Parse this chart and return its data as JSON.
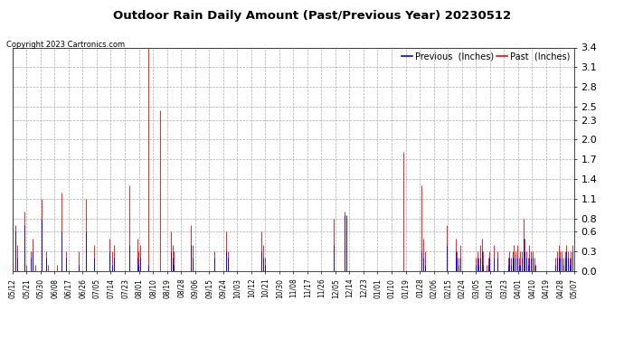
{
  "title": "Outdoor Rain Daily Amount (Past/Previous Year) 20230512",
  "copyright": "Copyright 2023 Cartronics.com",
  "legend_previous": "Previous  (Inches)",
  "legend_past": "Past  (Inches)",
  "color_previous": "#0000FF",
  "color_past": "#FF0000",
  "color_bg": "#FFFFFF",
  "color_grid": "#AAAAAA",
  "ylim": [
    0.0,
    3.4
  ],
  "yticks": [
    0.0,
    0.3,
    0.6,
    0.8,
    1.1,
    1.4,
    1.7,
    2.0,
    2.3,
    2.5,
    2.8,
    3.1,
    3.4
  ],
  "x_labels": [
    "05/12",
    "05/21",
    "05/30",
    "06/08",
    "06/17",
    "06/26",
    "07/05",
    "07/14",
    "07/23",
    "08/01",
    "08/10",
    "08/19",
    "08/28",
    "09/06",
    "09/15",
    "09/24",
    "10/03",
    "10/12",
    "10/21",
    "10/30",
    "11/08",
    "11/17",
    "11/26",
    "12/05",
    "12/14",
    "12/23",
    "01/01",
    "01/10",
    "01/19",
    "01/28",
    "02/06",
    "02/15",
    "02/24",
    "03/05",
    "03/14",
    "03/23",
    "04/01",
    "04/10",
    "04/19",
    "04/28",
    "05/07"
  ],
  "past_rain": [
    0.1,
    0.0,
    0.7,
    0.4,
    0.0,
    0.0,
    0.0,
    0.0,
    0.9,
    0.1,
    0.0,
    0.0,
    0.3,
    0.5,
    0.0,
    0.1,
    0.0,
    0.0,
    0.0,
    1.1,
    0.0,
    0.0,
    0.3,
    0.1,
    0.0,
    0.0,
    0.0,
    0.0,
    0.0,
    0.1,
    0.0,
    0.0,
    1.2,
    0.0,
    0.0,
    0.3,
    0.0,
    0.0,
    0.0,
    0.0,
    0.0,
    0.0,
    0.0,
    0.3,
    0.0,
    0.0,
    0.0,
    0.0,
    1.1,
    0.0,
    0.0,
    0.0,
    0.0,
    0.4,
    0.0,
    0.0,
    0.0,
    0.0,
    0.0,
    0.0,
    0.0,
    0.0,
    0.0,
    0.5,
    0.0,
    0.3,
    0.4,
    0.0,
    0.0,
    0.0,
    0.0,
    0.0,
    0.0,
    0.0,
    0.0,
    0.0,
    1.3,
    0.0,
    0.0,
    0.0,
    0.0,
    0.5,
    0.3,
    0.4,
    0.0,
    0.0,
    0.0,
    0.0,
    3.4,
    0.0,
    0.0,
    0.0,
    0.0,
    0.0,
    0.0,
    0.0,
    2.45,
    0.0,
    0.0,
    0.0,
    0.0,
    0.0,
    0.0,
    0.6,
    0.4,
    0.3,
    0.0,
    0.0,
    0.0,
    0.0,
    0.0,
    0.0,
    0.0,
    0.0,
    0.0,
    0.0,
    0.7,
    0.4,
    0.0,
    0.0,
    0.0,
    0.0,
    0.0,
    0.0,
    0.0,
    0.0,
    0.0,
    0.0,
    0.0,
    0.0,
    0.0,
    0.3,
    0.0,
    0.0,
    0.0,
    0.0,
    0.0,
    0.0,
    0.0,
    0.6,
    0.3,
    0.0,
    0.0,
    0.0,
    0.0,
    0.0,
    0.0,
    0.0,
    0.0,
    0.0,
    0.0,
    0.0,
    0.0,
    0.0,
    0.0,
    0.0,
    0.0,
    0.0,
    0.0,
    0.0,
    0.0,
    0.0,
    0.6,
    0.4,
    0.2,
    0.0,
    0.0,
    0.0,
    0.0,
    0.0,
    0.0,
    0.0,
    0.0,
    0.0,
    0.0,
    0.0,
    0.0,
    0.0,
    0.0,
    0.0,
    0.0,
    0.0,
    0.0,
    0.0,
    0.0,
    0.0,
    0.0,
    0.0,
    0.0,
    0.0,
    0.0,
    0.0,
    0.0,
    0.0,
    0.0,
    0.0,
    0.0,
    0.0,
    0.0,
    0.0,
    0.0,
    0.0,
    0.0,
    0.0,
    0.0,
    0.0,
    0.0,
    0.0,
    0.0,
    0.8,
    0.0,
    0.0,
    0.0,
    0.0,
    0.0,
    0.0,
    0.9,
    0.8,
    0.0,
    0.0,
    0.0,
    0.0,
    0.0,
    0.0,
    0.0,
    0.0,
    0.0,
    0.0,
    0.0,
    0.0,
    0.0,
    0.0,
    0.0,
    0.0,
    0.0,
    0.0,
    0.0,
    0.0,
    0.0,
    0.0,
    0.0,
    0.0,
    0.0,
    0.0,
    0.0,
    0.0,
    0.0,
    0.0,
    0.0,
    0.0,
    0.0,
    0.0,
    0.0,
    0.0,
    1.82,
    0.0,
    0.0,
    0.0,
    0.0,
    0.0,
    0.0,
    0.0,
    0.0,
    0.0,
    0.0,
    0.0,
    1.3,
    0.5,
    0.3,
    0.0,
    0.0,
    0.0,
    0.0,
    0.0,
    0.0,
    0.0,
    0.0,
    0.0,
    0.0,
    0.0,
    0.0,
    0.0,
    0.7,
    0.0,
    0.0,
    0.0,
    0.0,
    0.0,
    0.5,
    0.3,
    0.2,
    0.4,
    0.0,
    0.0,
    0.0,
    0.0,
    0.0,
    0.0,
    0.0,
    0.0,
    0.0,
    0.2,
    0.3,
    0.2,
    0.4,
    0.5,
    0.3,
    0.0,
    0.1,
    0.2,
    0.3,
    0.0,
    0.0,
    0.4,
    0.0,
    0.3,
    0.0,
    0.0,
    0.0,
    0.0,
    0.0,
    0.0,
    0.2,
    0.3,
    0.2,
    0.3,
    0.4,
    0.3,
    0.4,
    0.2,
    0.3,
    0.3,
    0.8,
    0.5,
    0.3,
    0.2,
    0.4,
    0.3,
    0.3,
    0.2,
    0.1,
    0.0,
    0.0,
    0.0,
    0.0,
    0.0,
    0.0,
    0.0,
    0.0,
    0.0,
    0.0,
    0.0,
    0.0,
    0.2,
    0.3,
    0.4,
    0.3,
    0.3,
    0.2,
    0.3,
    0.4,
    0.3,
    0.2,
    0.3,
    0.4,
    0.3
  ],
  "previous_rain": [
    0.0,
    0.0,
    0.6,
    0.2,
    0.0,
    0.0,
    0.0,
    0.0,
    0.7,
    0.0,
    0.0,
    0.0,
    0.2,
    0.3,
    0.0,
    0.0,
    0.0,
    0.0,
    0.0,
    0.8,
    0.0,
    0.0,
    0.2,
    0.0,
    0.0,
    0.0,
    0.0,
    0.0,
    0.0,
    0.0,
    0.0,
    0.0,
    0.6,
    0.0,
    0.0,
    0.2,
    0.0,
    0.0,
    0.0,
    0.0,
    0.0,
    0.0,
    0.0,
    0.1,
    0.0,
    0.0,
    0.0,
    0.0,
    0.6,
    0.0,
    0.0,
    0.0,
    0.0,
    0.2,
    0.0,
    0.0,
    0.0,
    0.0,
    0.0,
    0.0,
    0.0,
    0.0,
    0.0,
    0.3,
    0.0,
    0.1,
    0.2,
    0.0,
    0.0,
    0.0,
    0.0,
    0.0,
    0.0,
    0.0,
    0.0,
    0.0,
    0.4,
    0.0,
    0.0,
    0.0,
    0.0,
    0.2,
    0.1,
    0.2,
    0.0,
    0.0,
    0.0,
    0.0,
    0.1,
    0.0,
    0.0,
    0.0,
    0.0,
    0.0,
    0.0,
    0.0,
    0.0,
    0.0,
    0.0,
    0.0,
    0.0,
    0.0,
    0.0,
    0.3,
    0.2,
    0.1,
    0.0,
    0.0,
    0.0,
    0.0,
    0.0,
    0.0,
    0.0,
    0.0,
    0.0,
    0.0,
    0.4,
    0.2,
    0.0,
    0.0,
    0.0,
    0.0,
    0.0,
    0.0,
    0.0,
    0.0,
    0.0,
    0.0,
    0.0,
    0.0,
    0.0,
    0.2,
    0.0,
    0.0,
    0.0,
    0.0,
    0.0,
    0.0,
    0.0,
    0.3,
    0.2,
    0.0,
    0.0,
    0.0,
    0.0,
    0.0,
    0.0,
    0.0,
    0.0,
    0.0,
    0.0,
    0.0,
    0.0,
    0.0,
    0.0,
    0.0,
    0.0,
    0.0,
    0.0,
    0.0,
    0.0,
    0.0,
    0.3,
    0.2,
    0.1,
    0.0,
    0.0,
    0.0,
    0.0,
    0.0,
    0.0,
    0.0,
    0.0,
    0.0,
    0.0,
    0.0,
    0.0,
    0.0,
    0.0,
    0.0,
    0.0,
    0.0,
    0.0,
    0.0,
    0.0,
    0.0,
    0.0,
    0.0,
    0.0,
    0.0,
    0.0,
    0.0,
    0.0,
    0.0,
    0.0,
    0.0,
    0.0,
    0.0,
    0.0,
    0.0,
    0.0,
    0.0,
    0.0,
    0.0,
    0.0,
    0.0,
    0.0,
    0.0,
    0.0,
    0.4,
    0.0,
    0.0,
    0.0,
    0.0,
    0.0,
    0.0,
    0.85,
    0.85,
    0.0,
    0.0,
    0.0,
    0.0,
    0.0,
    0.0,
    0.0,
    0.0,
    0.0,
    0.0,
    0.0,
    0.0,
    0.0,
    0.0,
    0.0,
    0.0,
    0.0,
    0.0,
    0.0,
    0.0,
    0.0,
    0.0,
    0.0,
    0.0,
    0.0,
    0.0,
    0.0,
    0.0,
    0.0,
    0.0,
    0.0,
    0.0,
    0.0,
    0.0,
    0.0,
    0.0,
    0.0,
    0.0,
    0.0,
    0.0,
    0.0,
    0.0,
    0.0,
    0.0,
    0.0,
    0.0,
    0.0,
    0.0,
    0.3,
    0.2,
    0.1,
    0.0,
    0.0,
    0.0,
    0.0,
    0.0,
    0.0,
    0.0,
    0.0,
    0.0,
    0.0,
    0.0,
    0.0,
    0.0,
    0.4,
    0.0,
    0.0,
    0.0,
    0.0,
    0.0,
    0.3,
    0.2,
    0.1,
    0.2,
    0.0,
    0.0,
    0.0,
    0.0,
    0.0,
    0.0,
    0.0,
    0.0,
    0.0,
    0.1,
    0.2,
    0.1,
    0.2,
    0.3,
    0.1,
    0.0,
    0.0,
    0.1,
    0.2,
    0.0,
    0.0,
    0.2,
    0.0,
    0.2,
    0.0,
    0.0,
    0.0,
    0.0,
    0.0,
    0.0,
    0.1,
    0.2,
    0.1,
    0.2,
    0.2,
    0.2,
    0.2,
    0.1,
    0.1,
    0.2,
    0.5,
    0.3,
    0.2,
    0.1,
    0.2,
    0.2,
    0.2,
    0.1,
    0.0,
    0.0,
    0.0,
    0.0,
    0.0,
    0.0,
    0.0,
    0.0,
    0.0,
    0.0,
    0.0,
    0.0,
    0.0,
    0.1,
    0.2,
    0.2,
    0.2,
    0.2,
    0.1,
    0.2,
    0.3,
    0.2,
    0.1,
    0.2,
    0.3,
    0.2
  ]
}
